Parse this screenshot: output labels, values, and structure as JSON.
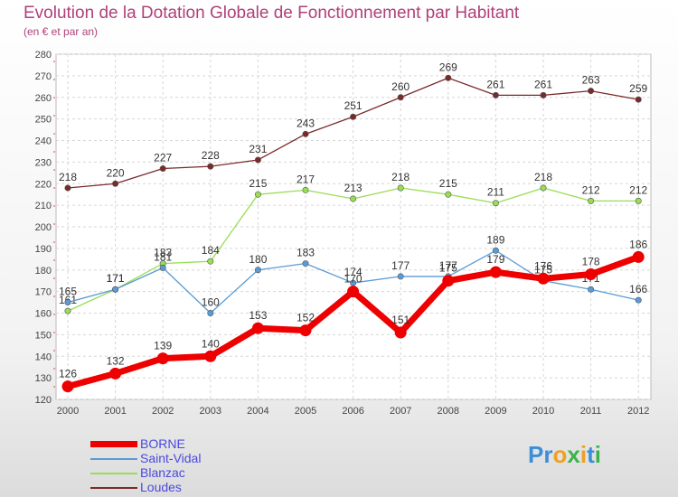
{
  "chart_data": {
    "type": "line",
    "title": "Evolution de la Dotation Globale de Fonctionnement par Habitant",
    "subtitle": "(en € et par an)",
    "xlabel": "",
    "ylabel": "",
    "ylim": [
      120,
      280
    ],
    "yticks": [
      120,
      130,
      140,
      150,
      160,
      170,
      180,
      190,
      200,
      210,
      220,
      230,
      240,
      250,
      260,
      270,
      280
    ],
    "categories": [
      "2000",
      "2001",
      "2002",
      "2003",
      "2004",
      "2005",
      "2006",
      "2007",
      "2008",
      "2009",
      "2010",
      "2011",
      "2012"
    ],
    "legend_position": "bottom-left",
    "series": [
      {
        "name": "BORNE",
        "color": "#ee0000",
        "emphasis": true,
        "values": [
          126,
          132,
          139,
          140,
          153,
          152,
          170,
          151,
          175,
          179,
          176,
          178,
          186
        ]
      },
      {
        "name": "Saint-Vidal",
        "color": "#5b9bd5",
        "emphasis": false,
        "values": [
          165,
          171,
          181,
          160,
          180,
          183,
          174,
          177,
          177,
          189,
          175,
          171,
          166
        ]
      },
      {
        "name": "Blanzac",
        "color": "#99dd55",
        "emphasis": false,
        "values": [
          161,
          171,
          183,
          184,
          215,
          217,
          213,
          218,
          215,
          211,
          218,
          212,
          212
        ]
      },
      {
        "name": "Loudes",
        "color": "#7a2a2a",
        "emphasis": false,
        "values": [
          218,
          220,
          227,
          228,
          231,
          243,
          251,
          260,
          269,
          261,
          261,
          263,
          259
        ]
      }
    ]
  },
  "branding": {
    "logo_text": "Proxiti",
    "letters": [
      "P",
      "r",
      "o",
      "x",
      "i",
      "t",
      "i"
    ],
    "letter_colors": [
      "#3b8fd8",
      "#3b8fd8",
      "#f0a020",
      "#3bb34a",
      "#f0a020",
      "#3b8fd8",
      "#3bb34a"
    ]
  }
}
